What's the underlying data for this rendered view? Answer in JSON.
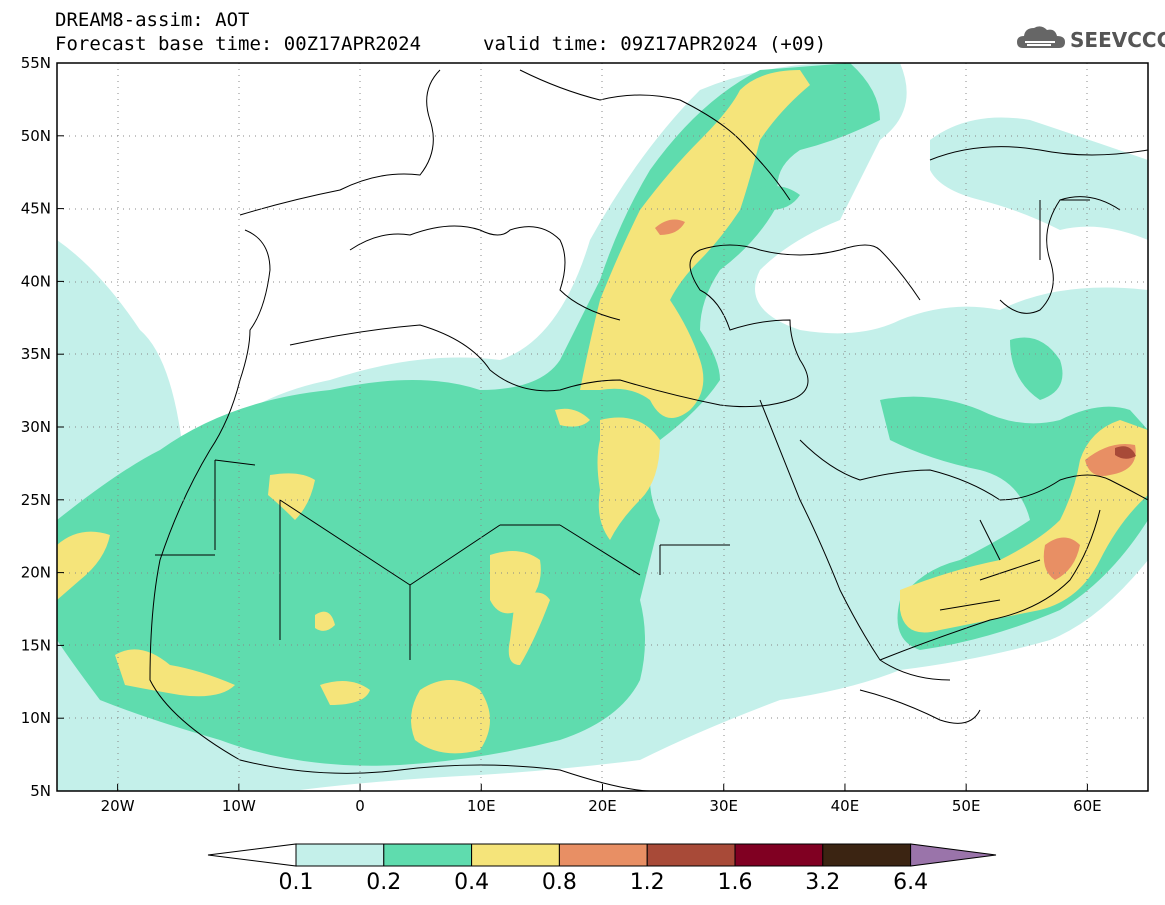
{
  "title": {
    "line1": "DREAM8-assim: AOT",
    "base": "Forecast base time: 00Z17APR2024",
    "valid": "valid time: 09Z17APR2024 (+09)"
  },
  "logo": {
    "text": "SEEVCCC",
    "icon": "cloud-icon"
  },
  "map": {
    "lon_range": [
      -25,
      65
    ],
    "lat_range": [
      5,
      55
    ],
    "lon_labels": [
      "20W",
      "10W",
      "0",
      "10E",
      "20E",
      "30E",
      "40E",
      "50E",
      "60E"
    ],
    "lat_labels": [
      "55N",
      "50N",
      "45N",
      "40N",
      "35N",
      "30N",
      "25N",
      "20N",
      "15N",
      "10N",
      "5N"
    ],
    "grid": "dotted"
  },
  "colorbar": {
    "colors": [
      "#c4f0ea",
      "#5fdcae",
      "#f5e47a",
      "#e88f64",
      "#a84a38",
      "#800022",
      "#3b2412",
      "#9a74aa"
    ],
    "labels": [
      "0.1",
      "0.2",
      "0.4",
      "0.8",
      "1.2",
      "1.6",
      "3.2",
      "6.4"
    ]
  }
}
